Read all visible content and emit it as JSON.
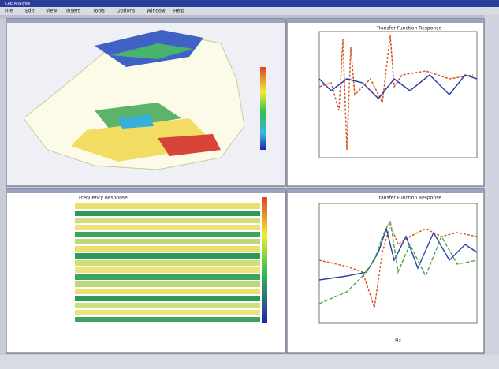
{
  "window": {
    "title": "CAE Analysis",
    "menu": [
      "File",
      "Edit",
      "View",
      "Insert",
      "Tools",
      "Options",
      "Window",
      "Help"
    ]
  },
  "panels": {
    "top_right": {
      "title": "Transfer Function Response"
    },
    "bottom_left": {
      "title": "Frequency Response"
    },
    "bottom_right": {
      "title": "Transfer Function Response",
      "x_label": "Hz"
    }
  }
}
